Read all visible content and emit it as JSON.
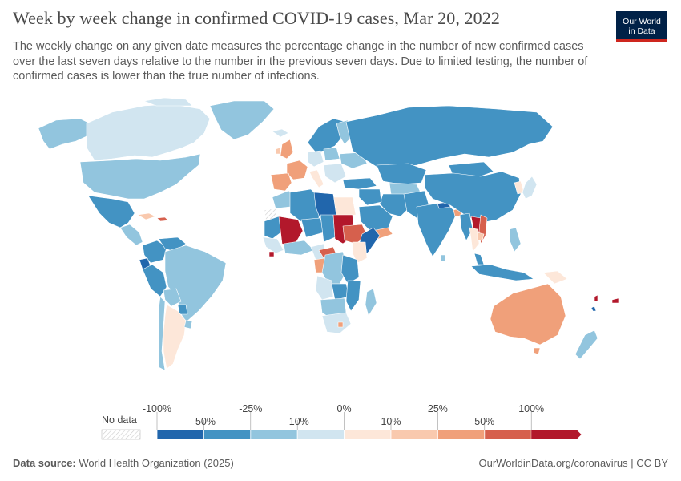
{
  "title": "Week by week change in confirmed COVID-19 cases, Mar 20, 2022",
  "subtitle": "The weekly change on any given date measures the percentage change in the number of new confirmed cases over the last seven days relative to the number in the previous seven days. Due to limited testing, the number of confirmed cases is lower than the true number of infections.",
  "logo": {
    "line1": "Our World",
    "line2": "in Data"
  },
  "legend": {
    "no_data_label": "No data",
    "top_labels": [
      "-100%",
      "-25%",
      "0%",
      "25%",
      "100%"
    ],
    "bottom_labels": [
      "-50%",
      "-10%",
      "10%",
      "50%"
    ],
    "bins": [
      {
        "from": "-100%",
        "to": "-50%",
        "color": "#2166ac"
      },
      {
        "from": "-50%",
        "to": "-25%",
        "color": "#4393c3"
      },
      {
        "from": "-25%",
        "to": "-10%",
        "color": "#92c5de"
      },
      {
        "from": "-10%",
        "to": "0%",
        "color": "#d1e5f0"
      },
      {
        "from": "0%",
        "to": "10%",
        "color": "#fde7d9"
      },
      {
        "from": "10%",
        "to": "25%",
        "color": "#f9c9ae"
      },
      {
        "from": "25%",
        "to": "50%",
        "color": "#f0a07a"
      },
      {
        "from": "50%",
        "to": "100%",
        "color": "#d6604d"
      },
      {
        "from": "100%",
        "to": "",
        "color": "#b2182b"
      }
    ]
  },
  "footer": {
    "source_label": "Data source:",
    "source_text": "World Health Organization (2025)",
    "link_text": "OurWorldinData.org/coronavirus",
    "license": "| CC BY"
  }
}
